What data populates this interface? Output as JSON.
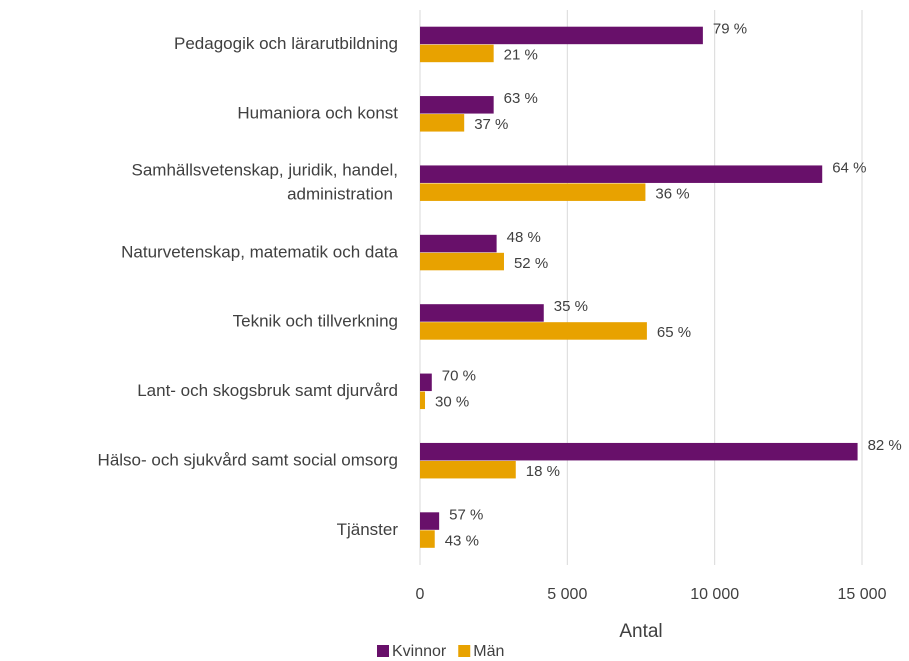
{
  "chart_data": {
    "type": "hbar",
    "categories": [
      "Pedagogik och lärarutbildning",
      "Humaniora och konst",
      "Samhällsvetenskap, juridik, handel, administration",
      "Naturvetenskap, matematik och data",
      "Teknik och tillverkning",
      "Lant- och skogsbruk samt djurvård",
      "Hälso- och sjukvård samt social omsorg",
      "Tjänster"
    ],
    "series": [
      {
        "name": "Kvinnor",
        "color": "#68106a",
        "values": [
          9600,
          2500,
          13650,
          2600,
          4200,
          400,
          14850,
          650
        ],
        "share_labels": [
          "79 %",
          "63 %",
          "64 %",
          "48 %",
          "35 %",
          "70 %",
          "82 %",
          "57 %"
        ]
      },
      {
        "name": "Män",
        "color": "#e8a200",
        "values": [
          2500,
          1500,
          7650,
          2850,
          7700,
          170,
          3250,
          500
        ],
        "share_labels": [
          "21 %",
          "37 %",
          "36 %",
          "52 %",
          "65 %",
          "30 %",
          "18 %",
          "43 %"
        ]
      }
    ],
    "xlabel": "Antal",
    "xlim": [
      0,
      15000
    ],
    "xticks": [
      0,
      {
        "value": 5000,
        "label": "5 000"
      },
      {
        "value": 10000,
        "label": "10 000"
      },
      {
        "value": 15000,
        "label": "15 000"
      }
    ],
    "grid": true,
    "legend": "bottom"
  }
}
